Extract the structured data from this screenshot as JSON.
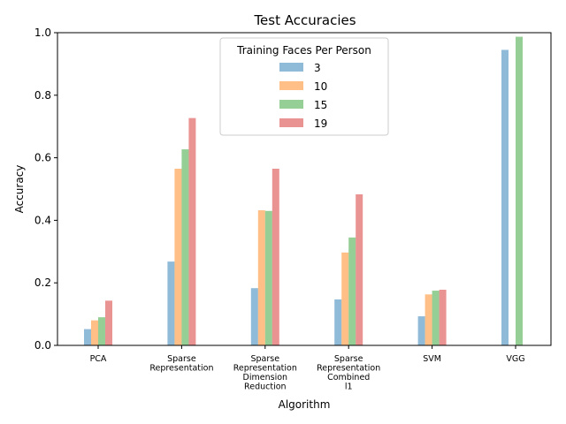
{
  "chart_data": {
    "type": "bar",
    "title": "Test Accuracies",
    "xlabel": "Algorithm",
    "ylabel": "Accuracy",
    "ylim": [
      0,
      1.0
    ],
    "yticks": [
      "0.0",
      "0.2",
      "0.4",
      "0.6",
      "0.8",
      "1.0"
    ],
    "grid": false,
    "legend_title": "Training Faces Per Person",
    "legend_position": "top-center",
    "categories": [
      [
        "PCA"
      ],
      [
        "Sparse",
        "Representation"
      ],
      [
        "Sparse",
        "Representation",
        "Dimension",
        "Reduction"
      ],
      [
        "Sparse",
        "Representation",
        "Combined",
        "l1"
      ],
      [
        "SVM"
      ],
      [
        "VGG"
      ]
    ],
    "series": [
      {
        "name": "3",
        "color": "#1f77b4",
        "values": [
          0.052,
          0.268,
          0.183,
          0.147,
          0.093,
          0.945
        ]
      },
      {
        "name": "10",
        "color": "#ff7f0e",
        "values": [
          0.08,
          0.565,
          0.432,
          0.297,
          0.163,
          null
        ]
      },
      {
        "name": "15",
        "color": "#2ca02c",
        "values": [
          0.09,
          0.627,
          0.43,
          0.345,
          0.175,
          0.987
        ]
      },
      {
        "name": "19",
        "color": "#d62728",
        "values": [
          0.143,
          0.727,
          0.565,
          0.483,
          0.178,
          null
        ]
      }
    ]
  }
}
